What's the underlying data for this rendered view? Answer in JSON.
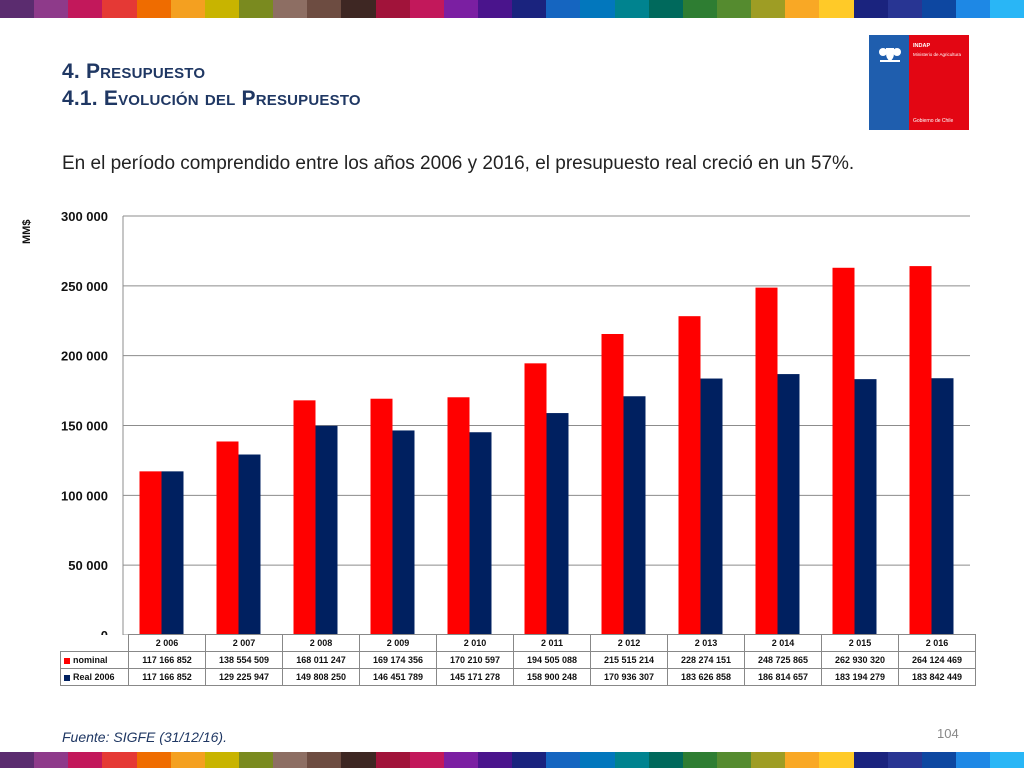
{
  "header": {
    "title_line1": "4. Presupuesto",
    "title_line2": "4.1. Evolución del Presupuesto"
  },
  "logo": {
    "name": "INDAP",
    "ministry": "Ministerio de Agricultura",
    "government": "Gobierno de Chile",
    "icon": "chile-coat-of-arms-icon"
  },
  "lead_text": "En el período comprendido entre los años 2006 y 2016, el presupuesto real creció en un 57%.",
  "chart_data": {
    "type": "bar",
    "ylabel": "MM$",
    "ylim": [
      0,
      300000
    ],
    "yticks": [
      "0",
      "50 000",
      "100 000",
      "150 000",
      "200 000",
      "250 000",
      "300 000"
    ],
    "grid": true,
    "legend": "data-table",
    "categories": [
      "2 006",
      "2 007",
      "2 008",
      "2 009",
      "2 010",
      "2 011",
      "2 012",
      "2 013",
      "2 014",
      "2 015",
      "2 016"
    ],
    "series": [
      {
        "name": "nominal",
        "color": "#ff0000",
        "values": [
          117166852,
          138554509,
          168011247,
          169174356,
          170210597,
          194505088,
          215515214,
          228274151,
          248725865,
          262930320,
          264124469
        ],
        "labels": [
          "117 166 852",
          "138 554 509",
          "168 011 247",
          "169 174 356",
          "170 210 597",
          "194 505 088",
          "215 515 214",
          "228 274 151",
          "248 725 865",
          "262 930 320",
          "264 124 469"
        ]
      },
      {
        "name": "Real 2006",
        "color": "#002060",
        "values": [
          117166852,
          129225947,
          149808250,
          146451789,
          145171278,
          158900248,
          170936307,
          183626858,
          186814657,
          183194279,
          183842449
        ],
        "labels": [
          "117 166 852",
          "129 225 947",
          "149 808 250",
          "146 451 789",
          "145 171 278",
          "158 900 248",
          "170 936 307",
          "183 626 858",
          "186 814 657",
          "183 194 279",
          "183 842 449"
        ]
      }
    ]
  },
  "footer": {
    "source": "Fuente: SIGFE (31/12/16).",
    "page_number": "104"
  },
  "stripe_colors": [
    "#5b2c6f",
    "#8e3a8a",
    "#c2185b",
    "#e53935",
    "#ef6c00",
    "#f4a020",
    "#c8b400",
    "#7a8a1f",
    "#8d6e63",
    "#6d4c41",
    "#3e2723",
    "#a1133a",
    "#c2185b",
    "#7b1fa2",
    "#4a148c",
    "#1a237e",
    "#1565c0",
    "#0277bd",
    "#00838f",
    "#00695c",
    "#2e7d32",
    "#558b2f",
    "#9e9d24",
    "#f9a825",
    "#ffca28",
    "#1a237e",
    "#283593",
    "#0d47a1",
    "#1e88e5",
    "#29b6f6"
  ]
}
